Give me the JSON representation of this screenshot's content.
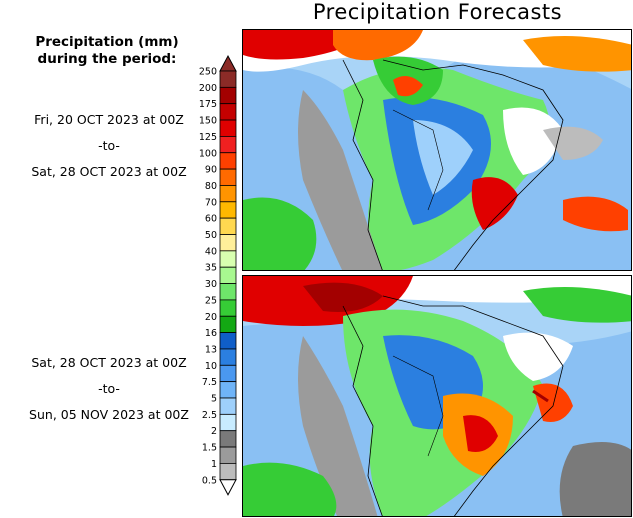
{
  "header": {
    "title": "Precipitation Forecasts"
  },
  "legend": {
    "title_line1": "Precipitation (mm)",
    "title_line2": "during the period:",
    "levels": [
      "250",
      "200",
      "175",
      "150",
      "125",
      "100",
      "90",
      "80",
      "70",
      "60",
      "50",
      "40",
      "35",
      "30",
      "25",
      "20",
      "16",
      "13",
      "10",
      "7.5",
      "5",
      "2.5",
      "2",
      "1.5",
      "1",
      "0.5"
    ],
    "colors": [
      "#8b2b27",
      "#a30000",
      "#c40000",
      "#e00000",
      "#f02020",
      "#ff4000",
      "#ff6a00",
      "#ff9400",
      "#ffb800",
      "#ffd850",
      "#ffef9a",
      "#d8ffb0",
      "#a8f890",
      "#6ee66a",
      "#36cc36",
      "#13a813",
      "#0f5ec8",
      "#2b7fe0",
      "#4a98f0",
      "#6fb4f8",
      "#9ed0fb",
      "#c8ecff",
      "#7a7a7a",
      "#9b9b9b",
      "#bcbcbc",
      "#dcdcdc"
    ],
    "top_color": "#8b2b27",
    "bottom_color": "#ffffff"
  },
  "periods": [
    {
      "start": "Fri, 20 OCT 2023 at 00Z",
      "sep": "-to-",
      "end": "Sat, 28 OCT 2023 at 00Z"
    },
    {
      "start": "Sat, 28 OCT 2023 at 00Z",
      "sep": "-to-",
      "end": "Sun, 05 NOV 2023 at 00Z"
    }
  ]
}
